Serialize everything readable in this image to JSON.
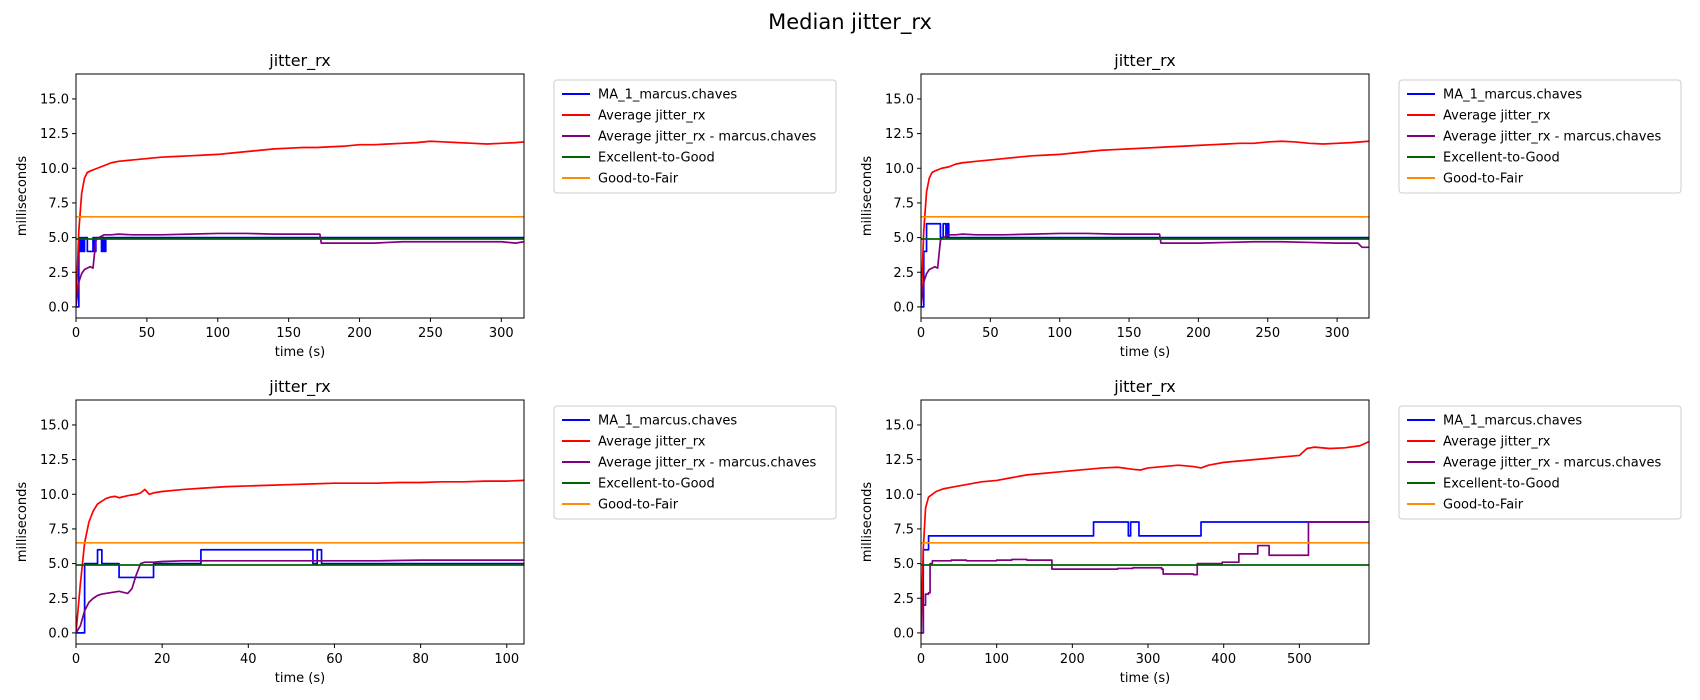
{
  "figure": {
    "suptitle": "Median jitter_rx"
  },
  "colors": {
    "MA_1_marcus.chaves": "#0000ff",
    "Average jitter_rx": "#ff0000",
    "Average jitter_rx - marcus.chaves": "#800080",
    "Excellent-to-Good": "#006400",
    "Good-to-Fair": "#ff8c00"
  },
  "chart_data": [
    {
      "type": "line",
      "title": "jitter_rx",
      "xlabel": "time (s)",
      "ylabel": "milliseconds",
      "xlim": [
        0,
        316
      ],
      "ylim": [
        -0.8,
        16.8
      ],
      "xticks": [
        0,
        50,
        100,
        150,
        200,
        250,
        300
      ],
      "yticks": [
        0.0,
        2.5,
        5.0,
        7.5,
        10.0,
        12.5,
        15.0
      ],
      "ytick_labels": [
        "0.0",
        "2.5",
        "5.0",
        "7.5",
        "10.0",
        "12.5",
        "15.0"
      ],
      "legend_position": "outside-right",
      "series": [
        {
          "name": "MA_1_marcus.chaves",
          "step": true,
          "x": [
            0,
            2,
            3,
            4,
            5,
            6,
            8,
            10,
            12,
            13,
            14,
            15,
            18,
            19,
            20,
            21,
            22,
            316
          ],
          "y": [
            0,
            5,
            4,
            5,
            4,
            5,
            4,
            4,
            5,
            4,
            5,
            5,
            4,
            5,
            4,
            5,
            5,
            5
          ]
        },
        {
          "name": "Average jitter_rx",
          "x": [
            0,
            2,
            4,
            6,
            8,
            10,
            15,
            20,
            25,
            30,
            40,
            50,
            60,
            70,
            80,
            90,
            100,
            110,
            120,
            130,
            140,
            150,
            160,
            170,
            180,
            190,
            200,
            210,
            220,
            230,
            240,
            250,
            260,
            270,
            280,
            290,
            300,
            310,
            316
          ],
          "y": [
            0,
            5.5,
            8.2,
            9.3,
            9.7,
            9.8,
            10,
            10.2,
            10.4,
            10.5,
            10.6,
            10.7,
            10.8,
            10.85,
            10.9,
            10.95,
            11.0,
            11.1,
            11.2,
            11.3,
            11.4,
            11.45,
            11.5,
            11.5,
            11.55,
            11.6,
            11.7,
            11.7,
            11.75,
            11.8,
            11.85,
            11.95,
            11.9,
            11.85,
            11.8,
            11.75,
            11.8,
            11.85,
            11.9
          ]
        },
        {
          "name": "Average jitter_rx - marcus.chaves",
          "x": [
            0,
            2,
            4,
            6,
            8,
            10,
            12,
            14,
            16,
            18,
            20,
            25,
            30,
            40,
            60,
            80,
            100,
            120,
            140,
            160,
            170,
            172,
            173,
            180,
            200,
            210,
            220,
            230,
            250,
            270,
            290,
            300,
            310,
            316
          ],
          "y": [
            0,
            1.8,
            2.4,
            2.7,
            2.8,
            2.9,
            2.8,
            4.8,
            5.0,
            5.1,
            5.2,
            5.2,
            5.25,
            5.2,
            5.2,
            5.25,
            5.3,
            5.3,
            5.25,
            5.25,
            5.25,
            5.25,
            4.6,
            4.6,
            4.6,
            4.6,
            4.65,
            4.7,
            4.7,
            4.7,
            4.7,
            4.7,
            4.6,
            4.7
          ]
        },
        {
          "name": "Excellent-to-Good",
          "x": [
            0,
            316
          ],
          "y": [
            4.9,
            4.9
          ]
        },
        {
          "name": "Good-to-Fair",
          "x": [
            0,
            316
          ],
          "y": [
            6.5,
            6.5
          ]
        }
      ]
    },
    {
      "type": "line",
      "title": "jitter_rx",
      "xlabel": "time (s)",
      "ylabel": "milliseconds",
      "xlim": [
        0,
        323
      ],
      "ylim": [
        -0.8,
        16.8
      ],
      "xticks": [
        0,
        50,
        100,
        150,
        200,
        250,
        300
      ],
      "yticks": [
        0.0,
        2.5,
        5.0,
        7.5,
        10.0,
        12.5,
        15.0
      ],
      "ytick_labels": [
        "0.0",
        "2.5",
        "5.0",
        "7.5",
        "10.0",
        "12.5",
        "15.0"
      ],
      "legend_position": "outside-right",
      "series": [
        {
          "name": "MA_1_marcus.chaves",
          "step": true,
          "x": [
            0,
            2,
            4,
            8,
            12,
            14,
            16,
            17,
            18,
            19,
            20,
            323
          ],
          "y": [
            0,
            4,
            6,
            6,
            6,
            5,
            6,
            6,
            5,
            6,
            5,
            5
          ]
        },
        {
          "name": "Average jitter_rx",
          "x": [
            0,
            2,
            4,
            6,
            8,
            10,
            15,
            20,
            25,
            30,
            40,
            50,
            60,
            70,
            80,
            90,
            100,
            110,
            120,
            130,
            140,
            150,
            160,
            170,
            180,
            190,
            200,
            210,
            220,
            230,
            240,
            250,
            260,
            270,
            280,
            290,
            300,
            310,
            323
          ],
          "y": [
            0,
            5.5,
            8.3,
            9.3,
            9.7,
            9.8,
            10.0,
            10.1,
            10.3,
            10.4,
            10.5,
            10.6,
            10.7,
            10.8,
            10.9,
            10.95,
            11.0,
            11.1,
            11.2,
            11.3,
            11.35,
            11.4,
            11.45,
            11.5,
            11.55,
            11.6,
            11.65,
            11.7,
            11.75,
            11.8,
            11.8,
            11.9,
            11.95,
            11.9,
            11.8,
            11.75,
            11.8,
            11.85,
            11.95
          ]
        },
        {
          "name": "Average jitter_rx - marcus.chaves",
          "x": [
            0,
            2,
            4,
            6,
            8,
            10,
            12,
            14,
            16,
            18,
            20,
            25,
            30,
            40,
            60,
            80,
            100,
            120,
            140,
            160,
            170,
            172,
            173,
            180,
            200,
            220,
            240,
            260,
            280,
            300,
            310,
            315,
            318,
            323
          ],
          "y": [
            0,
            1.8,
            2.4,
            2.7,
            2.8,
            2.9,
            2.8,
            4.8,
            5.0,
            5.1,
            5.2,
            5.2,
            5.25,
            5.2,
            5.2,
            5.25,
            5.3,
            5.3,
            5.25,
            5.25,
            5.25,
            5.25,
            4.6,
            4.6,
            4.6,
            4.65,
            4.7,
            4.7,
            4.65,
            4.6,
            4.6,
            4.6,
            4.3,
            4.3
          ]
        },
        {
          "name": "Excellent-to-Good",
          "x": [
            0,
            323
          ],
          "y": [
            4.9,
            4.9
          ]
        },
        {
          "name": "Good-to-Fair",
          "x": [
            0,
            323
          ],
          "y": [
            6.5,
            6.5
          ]
        }
      ]
    },
    {
      "type": "line",
      "title": "jitter_rx",
      "xlabel": "time (s)",
      "ylabel": "milliseconds",
      "xlim": [
        0,
        104
      ],
      "ylim": [
        -0.8,
        16.8
      ],
      "xticks": [
        0,
        20,
        40,
        60,
        80,
        100
      ],
      "yticks": [
        0.0,
        2.5,
        5.0,
        7.5,
        10.0,
        12.5,
        15.0
      ],
      "ytick_labels": [
        "0.0",
        "2.5",
        "5.0",
        "7.5",
        "10.0",
        "12.5",
        "15.0"
      ],
      "legend_position": "outside-right",
      "series": [
        {
          "name": "MA_1_marcus.chaves",
          "step": true,
          "x": [
            0,
            1,
            2,
            4,
            5,
            6,
            7,
            9,
            10,
            17,
            18,
            28,
            29,
            54,
            55,
            56,
            57,
            104
          ],
          "y": [
            0,
            0,
            5,
            5,
            6,
            5,
            5,
            5,
            4,
            4,
            5,
            5,
            6,
            6,
            5,
            6,
            5,
            5
          ]
        },
        {
          "name": "Average jitter_rx",
          "x": [
            0,
            1,
            2,
            3,
            4,
            5,
            6,
            7,
            8,
            9,
            10,
            12,
            14,
            15,
            16,
            17,
            18,
            20,
            25,
            30,
            35,
            40,
            45,
            50,
            55,
            60,
            65,
            70,
            75,
            80,
            85,
            90,
            95,
            100,
            104
          ],
          "y": [
            0,
            3.5,
            6.5,
            8.0,
            8.8,
            9.3,
            9.5,
            9.7,
            9.8,
            9.85,
            9.75,
            9.9,
            10.0,
            10.1,
            10.35,
            10.0,
            10.1,
            10.2,
            10.35,
            10.45,
            10.55,
            10.6,
            10.65,
            10.7,
            10.75,
            10.8,
            10.8,
            10.8,
            10.85,
            10.85,
            10.9,
            10.9,
            10.95,
            10.95,
            11.0
          ]
        },
        {
          "name": "Average jitter_rx - marcus.chaves",
          "x": [
            0,
            1,
            2,
            3,
            4,
            5,
            6,
            8,
            10,
            12,
            13,
            14,
            15,
            16,
            18,
            20,
            25,
            30,
            35,
            40,
            45,
            50,
            55,
            60,
            70,
            80,
            90,
            100,
            104
          ],
          "y": [
            0,
            0.5,
            1.6,
            2.2,
            2.5,
            2.7,
            2.8,
            2.9,
            3.0,
            2.85,
            3.2,
            4.2,
            5.0,
            5.1,
            5.1,
            5.15,
            5.2,
            5.2,
            5.2,
            5.2,
            5.2,
            5.2,
            5.2,
            5.2,
            5.2,
            5.25,
            5.25,
            5.25,
            5.25
          ]
        },
        {
          "name": "Excellent-to-Good",
          "x": [
            0,
            104
          ],
          "y": [
            4.9,
            4.9
          ]
        },
        {
          "name": "Good-to-Fair",
          "x": [
            0,
            104
          ],
          "y": [
            6.5,
            6.5
          ]
        }
      ]
    },
    {
      "type": "line",
      "title": "jitter_rx",
      "xlabel": "time (s)",
      "ylabel": "milliseconds",
      "xlim": [
        0,
        592
      ],
      "ylim": [
        -0.8,
        16.8
      ],
      "xticks": [
        0,
        100,
        200,
        300,
        400,
        500
      ],
      "yticks": [
        0.0,
        2.5,
        5.0,
        7.5,
        10.0,
        12.5,
        15.0
      ],
      "ytick_labels": [
        "0.0",
        "2.5",
        "5.0",
        "7.5",
        "10.0",
        "12.5",
        "15.0"
      ],
      "legend_position": "outside-right",
      "series": [
        {
          "name": "MA_1_marcus.chaves",
          "step": true,
          "x": [
            0,
            3,
            6,
            10,
            228,
            274,
            277,
            284,
            288,
            368,
            370,
            592
          ],
          "y": [
            0,
            6,
            6,
            7,
            8,
            7,
            8,
            8,
            7,
            7,
            8,
            8
          ]
        },
        {
          "name": "Average jitter_rx",
          "x": [
            0,
            3,
            6,
            10,
            15,
            20,
            30,
            40,
            60,
            80,
            100,
            120,
            140,
            160,
            180,
            200,
            220,
            240,
            260,
            280,
            290,
            300,
            320,
            340,
            360,
            370,
            380,
            400,
            420,
            440,
            460,
            480,
            500,
            510,
            520,
            540,
            560,
            580,
            592
          ],
          "y": [
            0,
            6,
            9.0,
            9.8,
            10.0,
            10.2,
            10.4,
            10.5,
            10.7,
            10.9,
            11.0,
            11.2,
            11.4,
            11.5,
            11.6,
            11.7,
            11.8,
            11.9,
            11.95,
            11.8,
            11.75,
            11.9,
            12.0,
            12.1,
            12.0,
            11.9,
            12.1,
            12.3,
            12.4,
            12.5,
            12.6,
            12.7,
            12.8,
            13.3,
            13.4,
            13.3,
            13.35,
            13.5,
            13.8
          ]
        },
        {
          "name": "Average jitter_rx - marcus.chaves",
          "step": true,
          "x": [
            0,
            3,
            6,
            10,
            12,
            15,
            40,
            60,
            100,
            120,
            140,
            173,
            240,
            260,
            280,
            300,
            318,
            320,
            360,
            365,
            398,
            420,
            445,
            460,
            512,
            592
          ],
          "y": [
            0,
            2.0,
            2.8,
            2.9,
            5.0,
            5.2,
            5.25,
            5.2,
            5.25,
            5.3,
            5.25,
            4.6,
            4.6,
            4.65,
            4.7,
            4.7,
            4.6,
            4.25,
            4.2,
            5.0,
            5.1,
            5.7,
            6.3,
            5.6,
            8.0,
            8.0
          ]
        },
        {
          "name": "Excellent-to-Good",
          "x": [
            0,
            592
          ],
          "y": [
            4.9,
            4.9
          ]
        },
        {
          "name": "Good-to-Fair",
          "x": [
            0,
            592
          ],
          "y": [
            6.5,
            6.5
          ]
        }
      ]
    }
  ]
}
